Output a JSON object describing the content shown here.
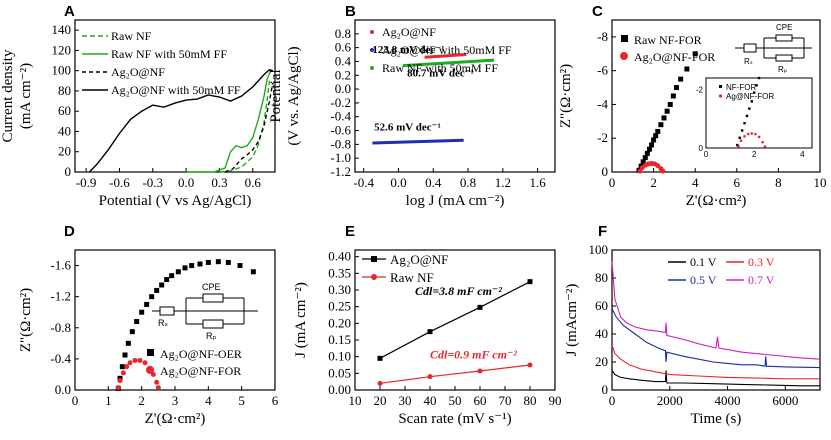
{
  "panels": {
    "A": {
      "label": "A"
    },
    "B": {
      "label": "B"
    },
    "C": {
      "label": "C"
    },
    "D": {
      "label": "D"
    },
    "E": {
      "label": "E"
    },
    "F": {
      "label": "F"
    }
  },
  "colors": {
    "black": "#000000",
    "green": "#1faa1f",
    "red": "#e8262b",
    "blue": "#1f2fb4",
    "magenta": "#d21fb8",
    "navy": "#1c2c9c",
    "gray": "#555555"
  },
  "chart_data": [
    {
      "panel": "A",
      "type": "line",
      "xlabel": "Potential (V vs Ag/AgCl)",
      "ylabel_line1": "Current density",
      "ylabel_line2": "(mA cm⁻²)",
      "xlim": [
        -1.0,
        0.8
      ],
      "ylim": [
        0,
        150
      ],
      "xticks": [
        -0.9,
        -0.6,
        -0.3,
        0.0,
        0.3,
        0.6
      ],
      "xtick_labels": [
        "-0.9",
        "-0.6",
        "-0.3",
        "0.0",
        "0.3",
        "0.6"
      ],
      "yticks": [
        0,
        20,
        40,
        60,
        80,
        100,
        120,
        140
      ],
      "ytick_labels": [
        "0",
        "20",
        "40",
        "60",
        "80",
        "100",
        "120",
        "140"
      ],
      "series": [
        {
          "name": "Raw NF",
          "color": "#1faa1f",
          "dash": "5,3",
          "x": [
            0.3,
            0.4,
            0.5,
            0.6,
            0.65,
            0.7,
            0.73,
            0.75
          ],
          "y": [
            0,
            1,
            5,
            15,
            27,
            48,
            72,
            90
          ]
        },
        {
          "name": "Raw NF with 50mM FF",
          "color": "#1faa1f",
          "dash": "",
          "x": [
            0.0,
            0.25,
            0.35,
            0.4,
            0.45,
            0.5,
            0.55,
            0.6,
            0.65,
            0.7,
            0.73,
            0.76
          ],
          "y": [
            0,
            0,
            4,
            20,
            26,
            24,
            26,
            34,
            52,
            74,
            92,
            100
          ]
        },
        {
          "name": "Ag₂O@NF",
          "color": "#000000",
          "dash": "4,3",
          "x": [
            0.35,
            0.42,
            0.5,
            0.55,
            0.6,
            0.65,
            0.7,
            0.75,
            0.78
          ],
          "y": [
            0,
            3,
            13,
            17,
            22,
            30,
            45,
            70,
            88
          ]
        },
        {
          "name": "Ag₂O@NF with 50mM FF",
          "color": "#000000",
          "dash": "",
          "x": [
            -0.87,
            -0.8,
            -0.7,
            -0.6,
            -0.5,
            -0.4,
            -0.3,
            -0.2,
            -0.1,
            0.0,
            0.1,
            0.2,
            0.3,
            0.4,
            0.5,
            0.6,
            0.7,
            0.75,
            0.78
          ],
          "y": [
            0,
            8,
            22,
            38,
            52,
            60,
            66,
            64,
            68,
            71,
            72,
            76,
            74,
            70,
            75,
            84,
            96,
            101,
            100
          ]
        }
      ],
      "legend": "top-left"
    },
    {
      "panel": "B",
      "type": "line",
      "xlabel": "log J (mA cm⁻²)",
      "ylabel_line1": "Potential",
      "ylabel_line2": "(V vs. Ag/AgCl)",
      "xlim": [
        -0.5,
        1.8
      ],
      "ylim": [
        -1.2,
        1.0
      ],
      "xticks": [
        -0.4,
        0.0,
        0.4,
        0.8,
        1.2,
        1.6
      ],
      "xtick_labels": [
        "-0.4",
        "0.0",
        "0.4",
        "0.8",
        "1.2",
        "1.6"
      ],
      "yticks": [
        -1.2,
        -1.0,
        -0.8,
        -0.6,
        -0.4,
        -0.2,
        0.0,
        0.2,
        0.4,
        0.6,
        0.8
      ],
      "ytick_labels": [
        "-1.2",
        "-1.0",
        "-0.8",
        "-0.6",
        "-0.4",
        "-0.2",
        "0.0",
        "0.2",
        "0.4",
        "0.6",
        "0.8"
      ],
      "series": [
        {
          "name": "Ag₂O@NF",
          "color": "#e8262b",
          "x": [
            0.3,
            0.78
          ],
          "y": [
            0.46,
            0.5
          ]
        },
        {
          "name": "Ag₂O@NF with 50mM FF",
          "color": "#1f2fb4",
          "x": [
            -0.3,
            0.75
          ],
          "y": [
            -0.78,
            -0.74
          ]
        },
        {
          "name": "Raw NF with 50mM FF",
          "color": "#1faa1f",
          "x": [
            0.05,
            1.1
          ],
          "y": [
            0.34,
            0.42
          ]
        }
      ],
      "annotations": [
        {
          "text": "123.8 mV dec⁻¹",
          "x": -0.3,
          "y": 0.52
        },
        {
          "text": "80.7 mV dec⁻¹",
          "x": 0.1,
          "y": 0.18
        },
        {
          "text": "52.6 mV dec⁻¹",
          "x": -0.28,
          "y": -0.6
        }
      ],
      "legend": "top-left"
    },
    {
      "panel": "C",
      "type": "scatter",
      "xlabel": "Z'(Ω·cm²)",
      "ylabel": "Z\"(Ω·cm²)",
      "xlim": [
        0,
        10
      ],
      "ylim": [
        0,
        -9
      ],
      "xticks": [
        0,
        2,
        4,
        6,
        8,
        10
      ],
      "xtick_labels": [
        "0",
        "2",
        "4",
        "6",
        "8",
        "10"
      ],
      "yticks": [
        0,
        -2,
        -4,
        -6,
        -8
      ],
      "ytick_labels": [
        "0",
        "-2",
        "-4",
        "-6",
        "-8"
      ],
      "series": [
        {
          "name": "Raw NF-FOR",
          "color": "#000000",
          "marker": "square",
          "x": [
            1.3,
            1.4,
            1.5,
            1.6,
            1.7,
            1.8,
            1.9,
            2.0,
            2.1,
            2.2,
            2.35,
            2.5,
            2.65,
            2.8,
            2.95,
            3.1,
            3.3,
            3.6,
            4.0
          ],
          "y": [
            -0.1,
            -0.35,
            -0.6,
            -0.85,
            -1.1,
            -1.35,
            -1.6,
            -1.9,
            -2.15,
            -2.4,
            -2.8,
            -3.2,
            -3.6,
            -4.0,
            -4.5,
            -5.0,
            -5.5,
            -6.1,
            -7.0
          ]
        },
        {
          "name": "Ag₂O@NF-FOR",
          "color": "#e8262b",
          "marker": "circle",
          "x": [
            1.35,
            1.45,
            1.6,
            1.75,
            1.9,
            2.05,
            2.2,
            2.35,
            2.45
          ],
          "y": [
            -0.05,
            -0.25,
            -0.4,
            -0.48,
            -0.5,
            -0.48,
            -0.38,
            -0.2,
            -0.05
          ]
        }
      ],
      "inset": {
        "xticks": [
          0,
          2,
          4
        ],
        "xtick_labels": [
          "0",
          "2",
          "4"
        ],
        "yticks": [
          0,
          -2
        ],
        "ytick_labels": [
          "0",
          "-2"
        ],
        "ylabel": "Z\"(Ω·cm²)",
        "xlabel": "Z'(Ω·cm²)",
        "legend": [
          "NF-FOR",
          "Ag@NF-FOR"
        ]
      },
      "circuit": {
        "labels": [
          "CPE",
          "Rₛ",
          "Rₚ"
        ]
      },
      "legend": "top-right"
    },
    {
      "panel": "D",
      "type": "scatter",
      "xlabel": "Z'(Ω·cm²)",
      "ylabel": "Z\"(Ω·cm²)",
      "xlim": [
        0,
        6
      ],
      "ylim": [
        0,
        -1.8
      ],
      "xticks": [
        0,
        1,
        2,
        3,
        4,
        5,
        6
      ],
      "xtick_labels": [
        "0",
        "1",
        "2",
        "3",
        "4",
        "5",
        "6"
      ],
      "yticks": [
        0,
        -0.4,
        -0.8,
        -1.2,
        -1.6
      ],
      "ytick_labels": [
        "0.0",
        "-0.4",
        "-0.8",
        "-1.2",
        "-1.6"
      ],
      "series": [
        {
          "name": "Ag₂O@NF-OER",
          "color": "#000000",
          "marker": "square",
          "x": [
            1.3,
            1.35,
            1.42,
            1.5,
            1.6,
            1.72,
            1.85,
            2.0,
            2.15,
            2.3,
            2.45,
            2.6,
            2.75,
            2.9,
            3.1,
            3.3,
            3.5,
            3.75,
            4.0,
            4.3,
            4.6,
            4.95,
            5.35
          ],
          "y": [
            -0.02,
            -0.15,
            -0.3,
            -0.45,
            -0.6,
            -0.75,
            -0.88,
            -1.0,
            -1.1,
            -1.2,
            -1.28,
            -1.35,
            -1.42,
            -1.47,
            -1.52,
            -1.57,
            -1.6,
            -1.62,
            -1.64,
            -1.65,
            -1.64,
            -1.6,
            -1.52
          ]
        },
        {
          "name": "Ag₂O@NF-FOR",
          "color": "#e8262b",
          "marker": "circle",
          "x": [
            1.3,
            1.35,
            1.45,
            1.55,
            1.65,
            1.8,
            1.95,
            2.1,
            2.25,
            2.35,
            2.45,
            2.5
          ],
          "y": [
            -0.03,
            -0.12,
            -0.22,
            -0.3,
            -0.35,
            -0.38,
            -0.38,
            -0.35,
            -0.28,
            -0.2,
            -0.1,
            -0.03
          ]
        }
      ],
      "circuit": {
        "labels": [
          "CPE",
          "Rₛ",
          "Rₚ"
        ]
      },
      "legend": "bottom-right"
    },
    {
      "panel": "E",
      "type": "line",
      "xlabel": "Scan rate (mV s⁻¹)",
      "ylabel": "J (mA cm⁻²)",
      "xlim": [
        10,
        90
      ],
      "ylim": [
        0,
        0.42
      ],
      "xticks": [
        10,
        20,
        30,
        40,
        50,
        60,
        70,
        80,
        90
      ],
      "xtick_labels": [
        "10",
        "20",
        "30",
        "40",
        "50",
        "60",
        "70",
        "80",
        "90"
      ],
      "yticks": [
        0,
        0.05,
        0.1,
        0.15,
        0.2,
        0.25,
        0.3,
        0.35,
        0.4
      ],
      "ytick_labels": [
        "0.00",
        "0.05",
        "0.10",
        "0.15",
        "0.20",
        "0.25",
        "0.30",
        "0.35",
        "0.40"
      ],
      "series": [
        {
          "name": "Ag₂O@NF",
          "color": "#000000",
          "marker": "square",
          "x": [
            20,
            40,
            60,
            80
          ],
          "y": [
            0.095,
            0.175,
            0.248,
            0.325
          ]
        },
        {
          "name": "Raw NF",
          "color": "#e8262b",
          "marker": "circle",
          "x": [
            20,
            40,
            60,
            80
          ],
          "y": [
            0.02,
            0.04,
            0.057,
            0.075
          ]
        }
      ],
      "annotations": [
        {
          "text": "Cdl=3.8 mF cm⁻²",
          "color": "#000000",
          "x": 34,
          "y": 0.285
        },
        {
          "text": "Cdl=0.9 mF cm⁻²",
          "color": "#e8262b",
          "x": 40,
          "y": 0.095
        }
      ],
      "legend": "top-left"
    },
    {
      "panel": "F",
      "type": "line",
      "xlabel": "Time (s)",
      "ylabel": "J (mAcm⁻²)",
      "xlim": [
        0,
        7200
      ],
      "ylim": [
        0,
        100
      ],
      "xticks": [
        0,
        2000,
        4000,
        6000
      ],
      "xtick_labels": [
        "0",
        "2000",
        "4000",
        "6000"
      ],
      "yticks": [
        0,
        20,
        40,
        60,
        80,
        100
      ],
      "ytick_labels": [
        "0",
        "20",
        "40",
        "60",
        "80",
        "100"
      ],
      "series": [
        {
          "name": "0.1 V",
          "color": "#000000",
          "x": [
            0,
            100,
            300,
            600,
            1000,
            1500,
            1850,
            1870,
            1900,
            2500,
            3500,
            4500,
            5500,
            6500,
            7200
          ],
          "y": [
            14,
            11,
            9,
            8,
            7,
            6,
            6,
            14,
            5,
            5,
            4.5,
            4,
            3.5,
            3,
            3
          ]
        },
        {
          "name": "0.3 V",
          "color": "#e8262b",
          "x": [
            0,
            100,
            300,
            600,
            1000,
            1500,
            2000,
            3000,
            4000,
            5000,
            6000,
            7200
          ],
          "y": [
            32,
            26,
            22,
            18,
            15,
            13,
            11,
            10,
            9,
            8.5,
            8,
            8
          ]
        },
        {
          "name": "0.5 V",
          "color": "#1c2c9c",
          "x": [
            0,
            150,
            400,
            800,
            1200,
            1600,
            1850,
            1870,
            1900,
            2500,
            3000,
            3500,
            4000,
            4500,
            5000,
            5300,
            5320,
            5350,
            6000,
            7200
          ],
          "y": [
            58,
            52,
            46,
            40,
            34,
            30,
            28,
            20,
            27,
            24,
            22,
            20,
            19,
            18,
            18,
            17,
            24,
            17,
            16.5,
            16
          ]
        },
        {
          "name": "0.7 V",
          "color": "#d21fb8",
          "x": [
            0,
            100,
            300,
            500,
            800,
            1200,
            1600,
            1850,
            1870,
            1900,
            2500,
            3000,
            3600,
            3650,
            3700,
            4500,
            5500,
            6500,
            7200
          ],
          "y": [
            92,
            65,
            52,
            48,
            45,
            43,
            42,
            41,
            48,
            39,
            36,
            33,
            30,
            38,
            30,
            27,
            25,
            23,
            22
          ]
        }
      ],
      "legend": "top"
    }
  ]
}
